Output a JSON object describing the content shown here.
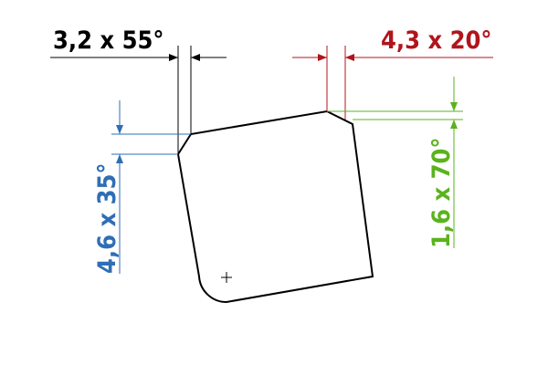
{
  "colors": {
    "black": "#000000",
    "red": "#b0151c",
    "blue": "#2f6eb5",
    "green": "#5ab31c"
  },
  "annotations": {
    "chamfer_top_left": "3,2 x 55°",
    "chamfer_top_right": "4,3 x 20°",
    "chamfer_left": "4,6 x 35°",
    "chamfer_right": "1,6 x 70°"
  },
  "symbols": {
    "center_mark": "plus-icon"
  }
}
